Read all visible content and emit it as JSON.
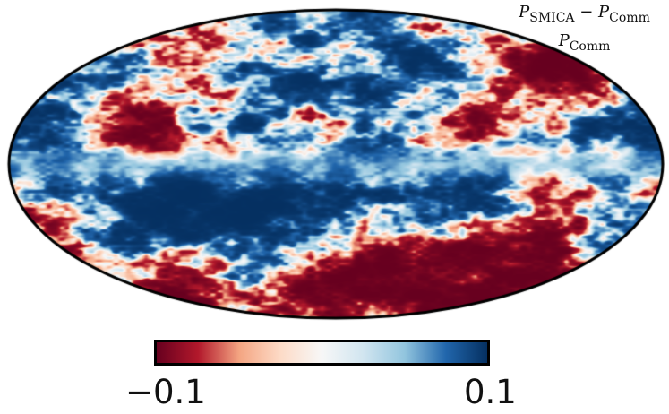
{
  "map": {
    "projection": "mollweide",
    "formula": {
      "numerator_p1": "P",
      "numerator_sub1": "SMICA",
      "minus": " − ",
      "numerator_p2": "P",
      "numerator_sub2": "Comm",
      "denominator_p": "P",
      "denominator_sub": "Comm"
    }
  },
  "colorbar": {
    "min_label": "−0.1",
    "max_label": "0.1",
    "min_value": -0.1,
    "max_value": 0.1,
    "colors": [
      "#67001f",
      "#b2182b",
      "#f4a582",
      "#fddbc7",
      "#f7f7f7",
      "#d1e5f0",
      "#92c5de",
      "#2166ac",
      "#053061"
    ]
  }
}
